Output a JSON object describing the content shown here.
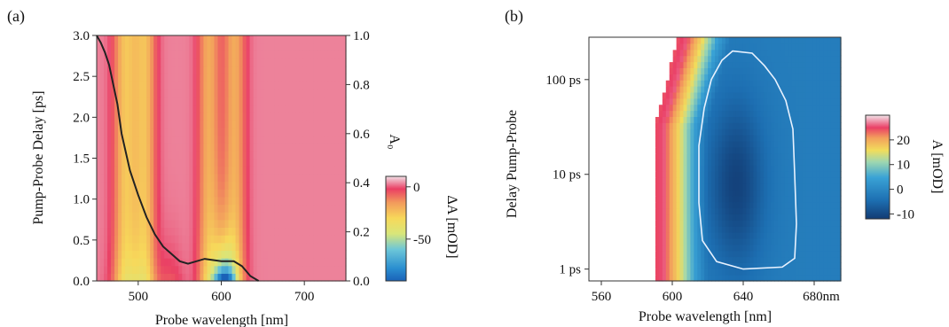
{
  "chart_data": [
    {
      "panel_label": "(a)",
      "type": "heatmap",
      "xlabel": "Probe wavelength [nm]",
      "ylabel": "Pump-Probe Delay [ps]",
      "y2label": "A₀",
      "colorbar_label": "ΔA [mOD]",
      "xlim": [
        450,
        750
      ],
      "ylim": [
        0.0,
        3.0
      ],
      "y2lim": [
        0.0,
        1.0
      ],
      "x_ticks": [
        "500",
        "600",
        "700"
      ],
      "y_ticks": [
        "0.0",
        "0.5",
        "1.0",
        "1.5",
        "2.0",
        "2.5",
        "3.0"
      ],
      "y2_ticks": [
        "0.0",
        "0.2",
        "0.4",
        "0.6",
        "0.8",
        "1.0"
      ],
      "colorbar_ticks": [
        "0",
        "-50"
      ],
      "colorbar_range": [
        -90,
        10
      ],
      "bands": [
        {
          "center_nm": 495,
          "width_nm": 22,
          "feature": "positive stripe (red/pink)"
        },
        {
          "center_nm": 600,
          "width_nm": 24,
          "feature": "negative band, deepest near 0 ps (blue)"
        }
      ],
      "series": [
        {
          "type": "line",
          "x": [
            450,
            455,
            460,
            465,
            470,
            475,
            480,
            490,
            500,
            510,
            520,
            530,
            540,
            550,
            560,
            580,
            600,
            615,
            625,
            635,
            645
          ],
          "y": [
            1.0,
            0.97,
            0.93,
            0.88,
            0.8,
            0.72,
            0.6,
            0.45,
            0.35,
            0.26,
            0.19,
            0.14,
            0.11,
            0.08,
            0.07,
            0.09,
            0.08,
            0.08,
            0.06,
            0.02,
            0.0
          ]
        }
      ]
    },
    {
      "panel_label": "(b)",
      "type": "heatmap",
      "xlabel": "Probe wavelength [nm]",
      "ylabel": "Delay Pump-Probe",
      "colorbar_label": "A [mOD]",
      "xlim": [
        553,
        695
      ],
      "ylim_ps": [
        0.75,
        280
      ],
      "y_scale": "log",
      "x_ticks": [
        "560",
        "600",
        "640",
        "680nm"
      ],
      "y_ticks": [
        "1 ps",
        "10 ps",
        "100 ps"
      ],
      "colorbar_ticks": [
        "20",
        "10",
        "0",
        "-10"
      ],
      "colorbar_range": [
        -12,
        30
      ],
      "contour": {
        "color": "#e8f2ff",
        "points_nm_ps": [
          [
            634,
            200
          ],
          [
            645,
            190
          ],
          [
            652,
            140
          ],
          [
            658,
            100
          ],
          [
            664,
            60
          ],
          [
            668,
            30
          ],
          [
            669,
            10
          ],
          [
            670,
            3
          ],
          [
            669,
            1.3
          ],
          [
            662,
            1.05
          ],
          [
            640,
            1.0
          ],
          [
            625,
            1.2
          ],
          [
            617,
            2.0
          ],
          [
            615,
            5
          ],
          [
            615,
            20
          ],
          [
            618,
            50
          ],
          [
            622,
            100
          ],
          [
            628,
            160
          ]
        ]
      }
    }
  ]
}
